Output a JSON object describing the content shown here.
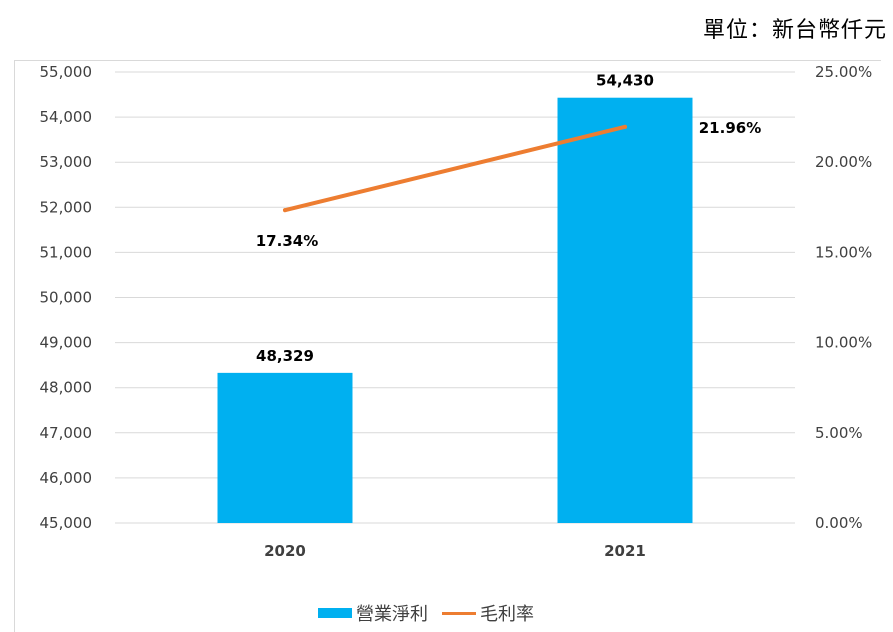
{
  "unit_label": "單位：新台幣仟元",
  "colors": {
    "bar": "#00b0f0",
    "line": "#ed7d31",
    "grid": "#d9d9d9"
  },
  "chart_data": {
    "type": "bar",
    "categories": [
      "2020",
      "2021"
    ],
    "series": [
      {
        "name": "營業淨利",
        "type": "bar",
        "axis": "left",
        "values": [
          48329,
          54430
        ],
        "labels": [
          "48,329",
          "54,430"
        ]
      },
      {
        "name": "毛利率",
        "type": "line",
        "axis": "right",
        "values": [
          17.34,
          21.96
        ],
        "labels": [
          "17.34%",
          "21.96%"
        ]
      }
    ],
    "y_left": {
      "min": 45000,
      "max": 55000,
      "step": 1000,
      "ticks": [
        "45,000",
        "46,000",
        "47,000",
        "48,000",
        "49,000",
        "50,000",
        "51,000",
        "52,000",
        "53,000",
        "54,000",
        "55,000"
      ]
    },
    "y_right": {
      "min": 0,
      "max": 25,
      "step": 5,
      "ticks": [
        "0.00%",
        "5.00%",
        "10.00%",
        "15.00%",
        "20.00%",
        "25.00%"
      ]
    },
    "grid": true,
    "legend_position": "bottom"
  }
}
